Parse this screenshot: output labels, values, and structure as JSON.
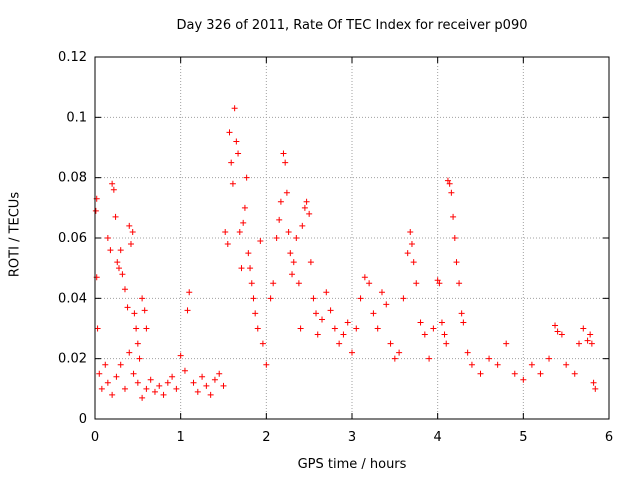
{
  "chart_data": {
    "type": "scatter",
    "title": "Day 326 of 2011, Rate Of TEC Index for receiver p090",
    "xlabel": "GPS time / hours",
    "ylabel": "ROTI / TECUs",
    "xlim": [
      0,
      6
    ],
    "ylim": [
      0,
      0.12
    ],
    "xticks": [
      "0",
      "1",
      "2",
      "3",
      "4",
      "5",
      "6"
    ],
    "yticks": [
      "0",
      "0.02",
      "0.04",
      "0.06",
      "0.08",
      "0.1",
      "0.12"
    ],
    "grid": true,
    "marker": "+",
    "color": "#ff0000",
    "series": [
      {
        "name": "p090",
        "points": [
          [
            0.01,
            0.069
          ],
          [
            0.02,
            0.073
          ],
          [
            0.02,
            0.047
          ],
          [
            0.03,
            0.03
          ],
          [
            0.05,
            0.015
          ],
          [
            0.08,
            0.01
          ],
          [
            0.12,
            0.018
          ],
          [
            0.15,
            0.06
          ],
          [
            0.18,
            0.056
          ],
          [
            0.2,
            0.078
          ],
          [
            0.22,
            0.076
          ],
          [
            0.24,
            0.067
          ],
          [
            0.26,
            0.052
          ],
          [
            0.28,
            0.05
          ],
          [
            0.3,
            0.056
          ],
          [
            0.32,
            0.048
          ],
          [
            0.35,
            0.043
          ],
          [
            0.38,
            0.037
          ],
          [
            0.4,
            0.064
          ],
          [
            0.42,
            0.058
          ],
          [
            0.44,
            0.062
          ],
          [
            0.46,
            0.035
          ],
          [
            0.48,
            0.03
          ],
          [
            0.5,
            0.025
          ],
          [
            0.52,
            0.02
          ],
          [
            0.55,
            0.04
          ],
          [
            0.58,
            0.036
          ],
          [
            0.6,
            0.03
          ],
          [
            0.15,
            0.012
          ],
          [
            0.2,
            0.008
          ],
          [
            0.25,
            0.014
          ],
          [
            0.3,
            0.018
          ],
          [
            0.35,
            0.01
          ],
          [
            0.4,
            0.022
          ],
          [
            0.45,
            0.015
          ],
          [
            0.5,
            0.012
          ],
          [
            0.55,
            0.007
          ],
          [
            0.6,
            0.01
          ],
          [
            0.65,
            0.013
          ],
          [
            0.7,
            0.009
          ],
          [
            0.75,
            0.011
          ],
          [
            0.8,
            0.008
          ],
          [
            0.85,
            0.012
          ],
          [
            0.9,
            0.014
          ],
          [
            0.95,
            0.01
          ],
          [
            1.0,
            0.021
          ],
          [
            1.05,
            0.016
          ],
          [
            1.08,
            0.036
          ],
          [
            1.1,
            0.042
          ],
          [
            1.15,
            0.012
          ],
          [
            1.2,
            0.009
          ],
          [
            1.25,
            0.014
          ],
          [
            1.3,
            0.011
          ],
          [
            1.35,
            0.008
          ],
          [
            1.4,
            0.013
          ],
          [
            1.45,
            0.015
          ],
          [
            1.5,
            0.011
          ],
          [
            1.52,
            0.062
          ],
          [
            1.55,
            0.058
          ],
          [
            1.57,
            0.095
          ],
          [
            1.59,
            0.085
          ],
          [
            1.61,
            0.078
          ],
          [
            1.63,
            0.103
          ],
          [
            1.65,
            0.092
          ],
          [
            1.67,
            0.088
          ],
          [
            1.69,
            0.062
          ],
          [
            1.71,
            0.05
          ],
          [
            1.73,
            0.065
          ],
          [
            1.75,
            0.07
          ],
          [
            1.77,
            0.08
          ],
          [
            1.79,
            0.055
          ],
          [
            1.81,
            0.05
          ],
          [
            1.83,
            0.045
          ],
          [
            1.85,
            0.04
          ],
          [
            1.87,
            0.035
          ],
          [
            1.9,
            0.03
          ],
          [
            1.93,
            0.059
          ],
          [
            1.96,
            0.025
          ],
          [
            2.0,
            0.018
          ],
          [
            2.05,
            0.04
          ],
          [
            2.08,
            0.045
          ],
          [
            2.12,
            0.06
          ],
          [
            2.15,
            0.066
          ],
          [
            2.17,
            0.072
          ],
          [
            2.2,
            0.088
          ],
          [
            2.22,
            0.085
          ],
          [
            2.24,
            0.075
          ],
          [
            2.26,
            0.062
          ],
          [
            2.28,
            0.055
          ],
          [
            2.3,
            0.048
          ],
          [
            2.32,
            0.052
          ],
          [
            2.35,
            0.06
          ],
          [
            2.38,
            0.045
          ],
          [
            2.4,
            0.03
          ],
          [
            2.42,
            0.064
          ],
          [
            2.45,
            0.07
          ],
          [
            2.47,
            0.072
          ],
          [
            2.5,
            0.068
          ],
          [
            2.52,
            0.052
          ],
          [
            2.55,
            0.04
          ],
          [
            2.58,
            0.035
          ],
          [
            2.6,
            0.028
          ],
          [
            2.65,
            0.033
          ],
          [
            2.7,
            0.042
          ],
          [
            2.75,
            0.036
          ],
          [
            2.8,
            0.03
          ],
          [
            2.85,
            0.025
          ],
          [
            2.9,
            0.028
          ],
          [
            2.95,
            0.032
          ],
          [
            3.0,
            0.022
          ],
          [
            3.05,
            0.03
          ],
          [
            3.1,
            0.04
          ],
          [
            3.15,
            0.047
          ],
          [
            3.2,
            0.045
          ],
          [
            3.25,
            0.035
          ],
          [
            3.3,
            0.03
          ],
          [
            3.35,
            0.042
          ],
          [
            3.4,
            0.038
          ],
          [
            3.45,
            0.025
          ],
          [
            3.5,
            0.02
          ],
          [
            3.55,
            0.022
          ],
          [
            3.6,
            0.04
          ],
          [
            3.65,
            0.055
          ],
          [
            3.68,
            0.062
          ],
          [
            3.7,
            0.058
          ],
          [
            3.72,
            0.052
          ],
          [
            3.75,
            0.045
          ],
          [
            3.8,
            0.032
          ],
          [
            3.85,
            0.028
          ],
          [
            3.9,
            0.02
          ],
          [
            3.95,
            0.03
          ],
          [
            4.0,
            0.046
          ],
          [
            4.02,
            0.045
          ],
          [
            4.05,
            0.032
          ],
          [
            4.08,
            0.028
          ],
          [
            4.1,
            0.025
          ],
          [
            4.12,
            0.079
          ],
          [
            4.14,
            0.078
          ],
          [
            4.16,
            0.075
          ],
          [
            4.18,
            0.067
          ],
          [
            4.2,
            0.06
          ],
          [
            4.22,
            0.052
          ],
          [
            4.25,
            0.045
          ],
          [
            4.28,
            0.035
          ],
          [
            4.3,
            0.032
          ],
          [
            4.35,
            0.022
          ],
          [
            4.4,
            0.018
          ],
          [
            4.5,
            0.015
          ],
          [
            4.6,
            0.02
          ],
          [
            4.7,
            0.018
          ],
          [
            4.8,
            0.025
          ],
          [
            4.9,
            0.015
          ],
          [
            5.0,
            0.013
          ],
          [
            5.1,
            0.018
          ],
          [
            5.2,
            0.015
          ],
          [
            5.3,
            0.02
          ],
          [
            5.37,
            0.031
          ],
          [
            5.4,
            0.029
          ],
          [
            5.45,
            0.028
          ],
          [
            5.5,
            0.018
          ],
          [
            5.6,
            0.015
          ],
          [
            5.65,
            0.025
          ],
          [
            5.7,
            0.03
          ],
          [
            5.75,
            0.026
          ],
          [
            5.78,
            0.028
          ],
          [
            5.8,
            0.025
          ],
          [
            5.82,
            0.012
          ],
          [
            5.84,
            0.01
          ]
        ]
      }
    ]
  }
}
